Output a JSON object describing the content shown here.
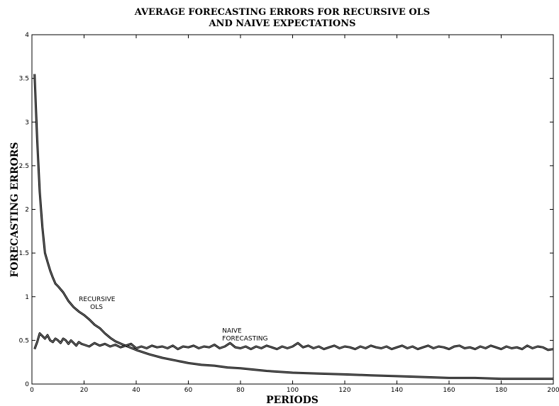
{
  "chart_data": {
    "type": "line",
    "title_line1": "AVERAGE FORECASTING ERRORS FOR RECURSIVE OLS",
    "title_line2": "AND NAIVE EXPECTATIONS",
    "xlabel": "PERIODS",
    "ylabel": "FORECASTING ERRORS",
    "xlim": [
      0,
      200
    ],
    "ylim": [
      0,
      4
    ],
    "x_ticks": [
      0,
      20,
      40,
      60,
      80,
      100,
      120,
      140,
      160,
      180,
      200
    ],
    "y_ticks": [
      0,
      0.5,
      1,
      1.5,
      2,
      2.5,
      3,
      3.5,
      4
    ],
    "x_tick_labels": [
      "0",
      "20",
      "40",
      "60",
      "80",
      "100",
      "120",
      "140",
      "160",
      "180",
      "200"
    ],
    "y_tick_labels": [
      "0",
      "0.5",
      "1",
      "1.5",
      "2",
      "2.5",
      "3",
      "3.5",
      "4"
    ],
    "grid": false,
    "colors": {
      "line": "#000000",
      "background": "#ffffff"
    },
    "annotations": [
      {
        "lines": [
          "RECURSIVE",
          "OLS"
        ],
        "x": 18,
        "y": 0.95
      },
      {
        "lines": [
          "NAIVE",
          "FORECASTING"
        ],
        "x": 73,
        "y": 0.59
      }
    ],
    "series": [
      {
        "x": [
          1,
          2,
          3,
          4,
          5,
          6,
          7,
          8,
          9,
          10,
          12,
          14,
          16,
          18,
          20,
          22,
          24,
          26,
          28,
          30,
          32,
          35,
          40,
          45,
          50,
          55,
          60,
          65,
          70,
          75,
          80,
          90,
          100,
          110,
          120,
          130,
          140,
          150,
          160,
          170,
          180,
          190,
          200
        ],
        "values": [
          3.55,
          2.8,
          2.2,
          1.8,
          1.5,
          1.4,
          1.3,
          1.22,
          1.15,
          1.12,
          1.05,
          0.95,
          0.88,
          0.83,
          0.79,
          0.74,
          0.68,
          0.64,
          0.58,
          0.53,
          0.49,
          0.45,
          0.39,
          0.34,
          0.3,
          0.27,
          0.24,
          0.22,
          0.21,
          0.19,
          0.18,
          0.15,
          0.13,
          0.12,
          0.11,
          0.1,
          0.09,
          0.08,
          0.07,
          0.07,
          0.06,
          0.06,
          0.06
        ]
      },
      {
        "x": [
          1,
          2,
          3,
          4,
          5,
          6,
          7,
          8,
          9,
          10,
          11,
          12,
          13,
          14,
          15,
          16,
          17,
          18,
          19,
          20,
          22,
          24,
          26,
          28,
          30,
          32,
          34,
          36,
          38,
          40,
          42,
          44,
          46,
          48,
          50,
          52,
          54,
          56,
          58,
          60,
          62,
          64,
          66,
          68,
          70,
          72,
          74,
          76,
          78,
          80,
          82,
          84,
          86,
          88,
          90,
          92,
          94,
          96,
          98,
          100,
          102,
          104,
          106,
          108,
          110,
          112,
          114,
          116,
          118,
          120,
          122,
          124,
          126,
          128,
          130,
          132,
          134,
          136,
          138,
          140,
          142,
          144,
          146,
          148,
          150,
          152,
          154,
          156,
          158,
          160,
          162,
          164,
          166,
          168,
          170,
          172,
          174,
          176,
          178,
          180,
          182,
          184,
          186,
          188,
          190,
          192,
          194,
          196,
          198,
          200
        ],
        "values": [
          0.4,
          0.48,
          0.58,
          0.55,
          0.52,
          0.56,
          0.5,
          0.48,
          0.52,
          0.5,
          0.47,
          0.52,
          0.5,
          0.46,
          0.5,
          0.47,
          0.44,
          0.48,
          0.46,
          0.45,
          0.43,
          0.47,
          0.44,
          0.46,
          0.43,
          0.45,
          0.42,
          0.44,
          0.46,
          0.41,
          0.43,
          0.41,
          0.44,
          0.42,
          0.43,
          0.41,
          0.44,
          0.4,
          0.43,
          0.42,
          0.44,
          0.41,
          0.43,
          0.42,
          0.45,
          0.41,
          0.43,
          0.47,
          0.42,
          0.41,
          0.43,
          0.4,
          0.43,
          0.41,
          0.44,
          0.42,
          0.4,
          0.43,
          0.41,
          0.43,
          0.47,
          0.42,
          0.44,
          0.41,
          0.43,
          0.4,
          0.42,
          0.44,
          0.41,
          0.43,
          0.42,
          0.4,
          0.43,
          0.41,
          0.44,
          0.42,
          0.41,
          0.43,
          0.4,
          0.42,
          0.44,
          0.41,
          0.43,
          0.4,
          0.42,
          0.44,
          0.41,
          0.43,
          0.42,
          0.4,
          0.43,
          0.44,
          0.41,
          0.42,
          0.4,
          0.43,
          0.41,
          0.44,
          0.42,
          0.4,
          0.43,
          0.41,
          0.42,
          0.4,
          0.44,
          0.41,
          0.43,
          0.42,
          0.39,
          0.4
        ]
      }
    ]
  }
}
